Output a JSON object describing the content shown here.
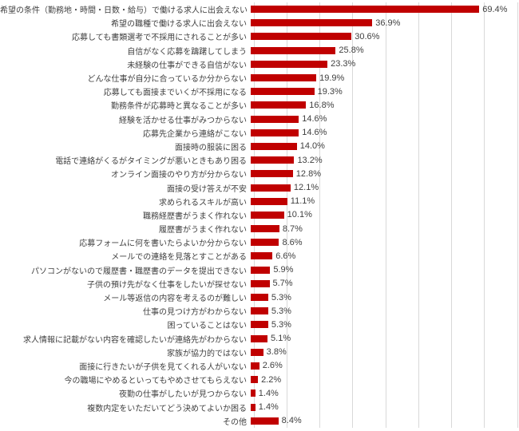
{
  "chart_data": {
    "type": "bar",
    "orientation": "horizontal",
    "title": "",
    "xlabel": "",
    "ylabel": "",
    "unit": "%",
    "xlim": [
      0,
      80
    ],
    "gridline_interval": 10,
    "grid": true,
    "legend": false,
    "bar_color": "#c00000",
    "gridline_color": "#d9d9d9",
    "categories": [
      "希望の条件（勤務地・時間・日数・給与）で働ける求人に出会えない",
      "希望の職種で働ける求人に出会えない",
      "応募しても書類選考で不採用にされることが多い",
      "自信がなく応募を躊躇してしまう",
      "未経験の仕事ができる自信がない",
      "どんな仕事が自分に合っているか分からない",
      "応募しても面接までいくが不採用になる",
      "勤務条件が応募時と異なることが多い",
      "経験を活かせる仕事がみつからない",
      "応募先企業から連絡がこない",
      "面接時の服装に困る",
      "電話で連絡がくるがタイミングが悪いときもあり困る",
      "オンライン面接のやり方が分からない",
      "面接の受け答えが不安",
      "求められるスキルが高い",
      "職務経歴書がうまく作れない",
      "履歴書がうまく作れない",
      "応募フォームに何を書いたらよいか分からない",
      "メールでの連絡を見落とすことがある",
      "パソコンがないので履歴書・職歴書のデータを提出できない",
      "子供の預け先がなく仕事をしたいが探せない",
      "メール等返信の内容を考えるのが難しい",
      "仕事の見つけ方がわからない",
      "困っていることはない",
      "求人情報に記載がない内容を確認したいが連絡先がわからない",
      "家族が協力的ではない",
      "面接に行きたいが子供を見てくれる人がいない",
      "今の職場にやめるといってもやめさせてもらえない",
      "夜勤の仕事がしたいが見つからない",
      "複数内定をいただいてどう決めてよいか困る",
      "その他"
    ],
    "values": [
      69.4,
      36.9,
      30.6,
      25.8,
      23.3,
      19.9,
      19.3,
      16.8,
      14.6,
      14.6,
      14.0,
      13.2,
      12.8,
      12.1,
      11.1,
      10.1,
      8.7,
      8.6,
      6.6,
      5.9,
      5.7,
      5.3,
      5.3,
      5.3,
      5.1,
      3.8,
      2.6,
      2.2,
      1.4,
      1.4,
      8.4
    ],
    "data_labels": [
      "69.4%",
      "36.9%",
      "30.6%",
      "25.8%",
      "23.3%",
      "19.9%",
      "19.3%",
      "16.8%",
      "14.6%",
      "14.6%",
      "14.0%",
      "13.2%",
      "12.8%",
      "12.1%",
      "11.1%",
      "10.1%",
      "8.7%",
      "8.6%",
      "6.6%",
      "5.9%",
      "5.7%",
      "5.3%",
      "5.3%",
      "5.3%",
      "5.1%",
      "3.8%",
      "2.6%",
      "2.2%",
      "1.4%",
      "1.4%",
      "8.4%"
    ]
  }
}
